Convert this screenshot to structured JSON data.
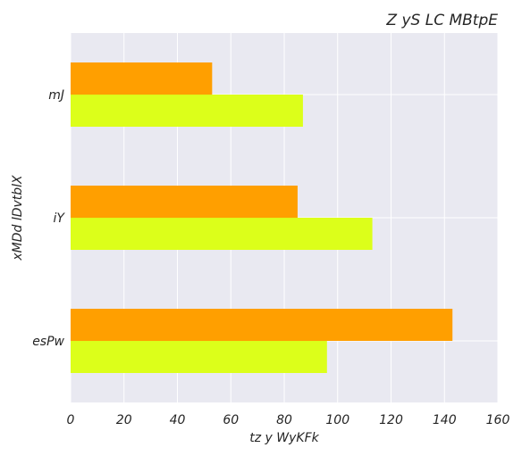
{
  "chart_data": {
    "type": "bar",
    "orientation": "horizontal",
    "title": "Z yS LC MBtpE",
    "xlabel": "tz y  WyKFk",
    "ylabel": "xMDd lDvtblX",
    "categories": [
      "mJ",
      "iY",
      "esPw"
    ],
    "xlim": [
      0,
      160
    ],
    "xticks": [
      0,
      20,
      40,
      60,
      80,
      100,
      120,
      140,
      160
    ],
    "series": [
      {
        "values": [
          53,
          85,
          143
        ],
        "color": "#ff9f00"
      },
      {
        "values": [
          87,
          113,
          96
        ],
        "color": "#dcff1a"
      }
    ],
    "grid": true,
    "legend": "none",
    "background": "#e9e9f1"
  }
}
